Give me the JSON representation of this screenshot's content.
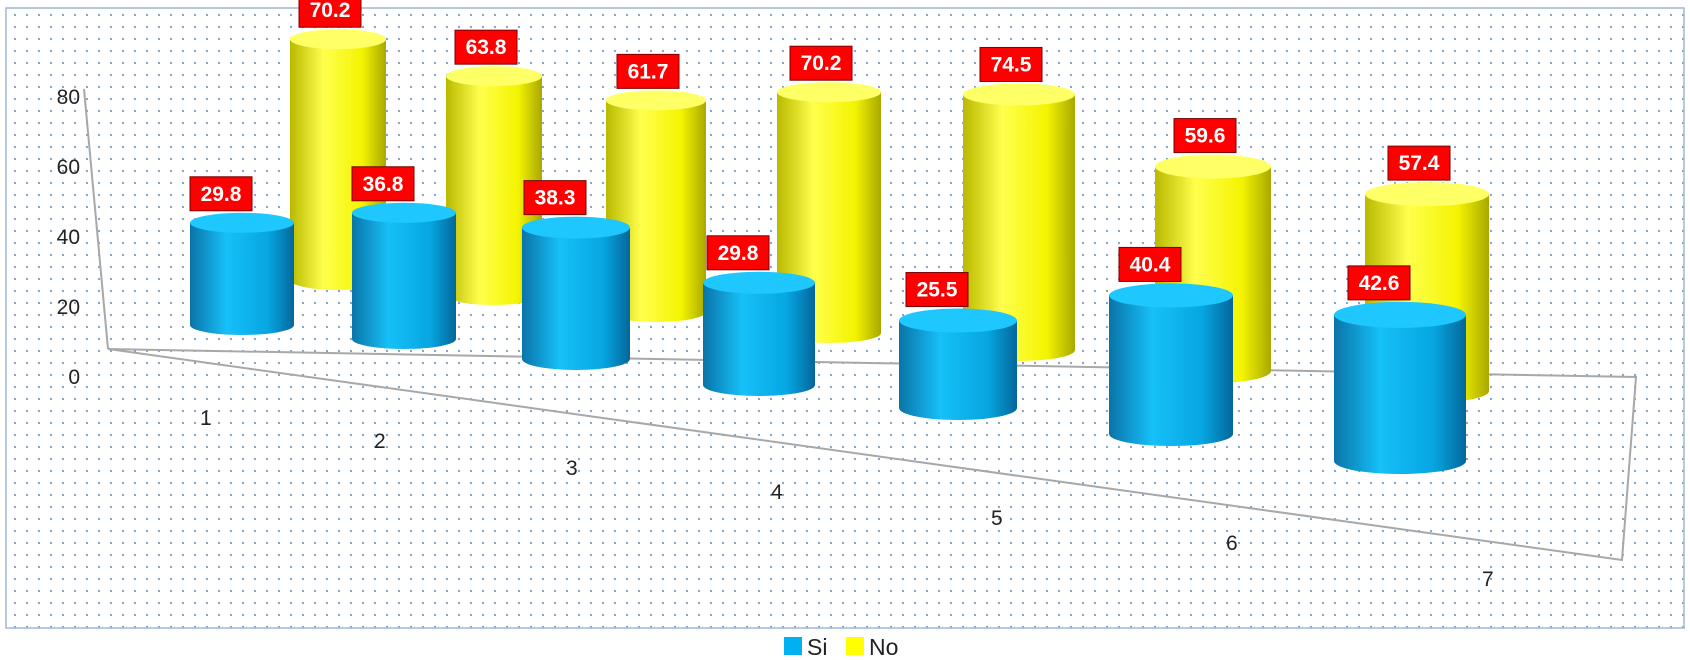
{
  "chart_data": {
    "type": "bar",
    "style": "3d-cylinder",
    "categories": [
      "1",
      "2",
      "3",
      "4",
      "5",
      "6",
      "7"
    ],
    "series": [
      {
        "name": "Si",
        "values": [
          29.8,
          36.8,
          38.3,
          29.8,
          25.5,
          40.4,
          42.6
        ],
        "color": "#00B0F0"
      },
      {
        "name": "No",
        "values": [
          70.2,
          63.8,
          61.7,
          70.2,
          74.5,
          59.6,
          57.4
        ],
        "color": "#FFFF00"
      }
    ],
    "y_ticks": [
      "0",
      "20",
      "40",
      "60",
      "80"
    ],
    "ylim": [
      0,
      80
    ],
    "grid": false,
    "legend_position": "bottom",
    "label_box_color": "#FF0000",
    "background": "dotted",
    "colors": {
      "si": "#00B0F0",
      "no": "#FFFF00",
      "label_box": "#FF0000"
    }
  }
}
